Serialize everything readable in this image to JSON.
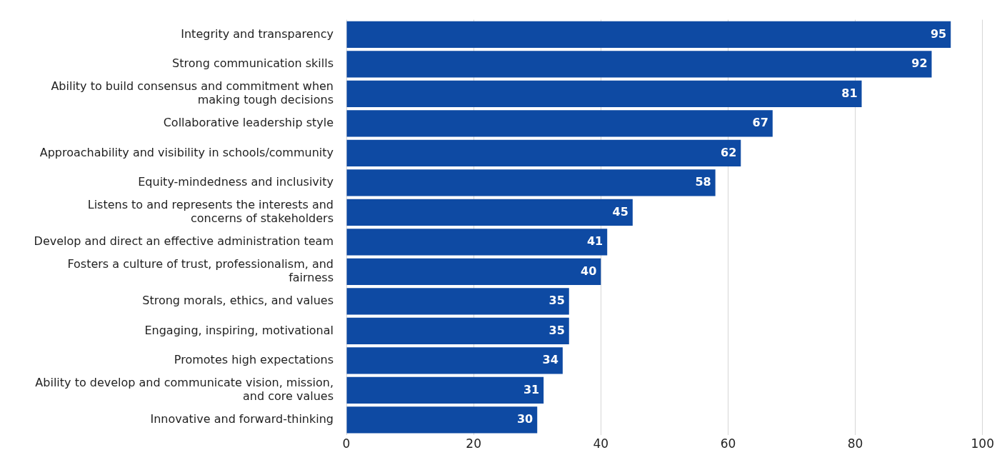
{
  "chart_data": {
    "type": "bar",
    "orientation": "horizontal",
    "categories": [
      "Integrity and transparency",
      "Strong communication skills",
      "Ability to build consensus and commitment when making tough decisions",
      "Collaborative leadership style",
      "Approachability and visibility in schools/community",
      "Equity-mindedness and inclusivity",
      "Listens to and represents the interests and concerns of stakeholders",
      "Develop and direct an effective administration team",
      "Fosters a culture of trust, professionalism, and fairness",
      "Strong morals, ethics, and values",
      "Engaging, inspiring, motivational",
      "Promotes high expectations",
      "Ability to develop and communicate vision, mission, and core values",
      "Innovative and forward-thinking"
    ],
    "values": [
      95,
      92,
      81,
      67,
      62,
      58,
      45,
      41,
      40,
      35,
      35,
      34,
      31,
      30
    ],
    "color": "#0e4aa3",
    "xlim": [
      0,
      100
    ],
    "xticks": [
      0,
      20,
      40,
      60,
      80,
      100
    ],
    "grid": "x",
    "data_labels": true,
    "legend": false
  }
}
